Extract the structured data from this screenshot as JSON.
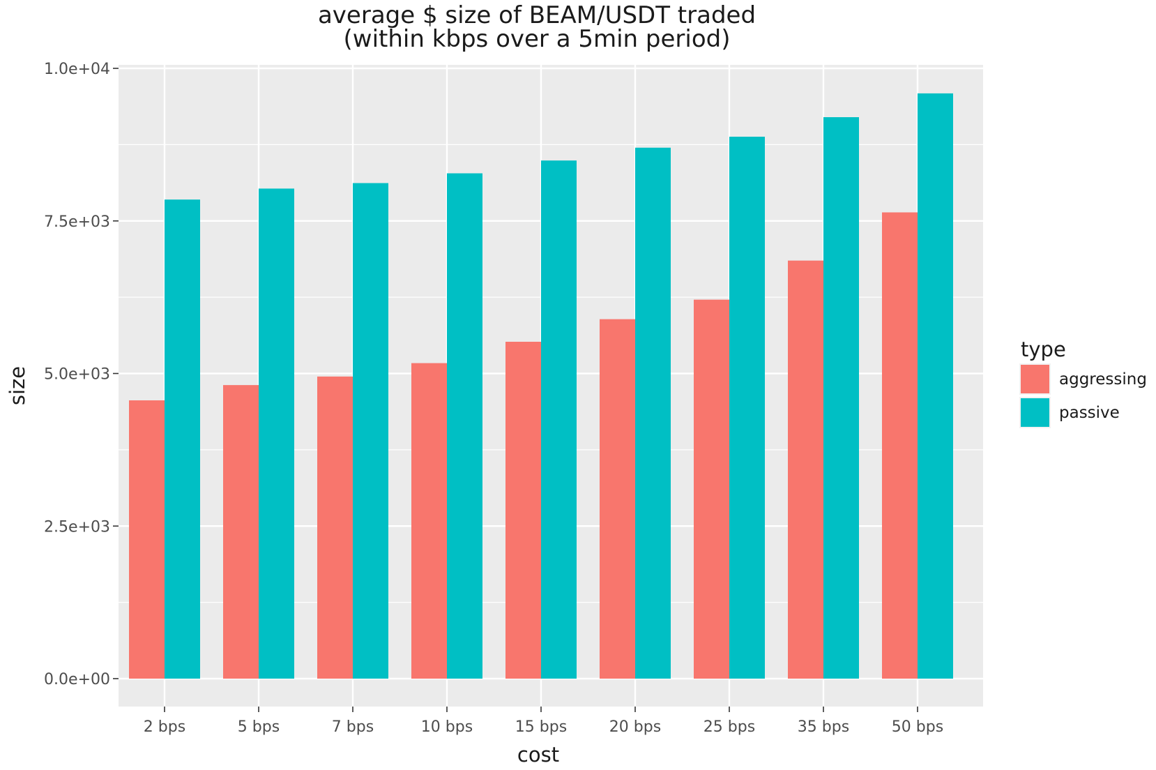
{
  "chart_data": {
    "type": "bar",
    "title_line1": "average $ size of BEAM/USDT traded",
    "title_line2": "(within kbps over a 5min period)",
    "xlabel": "cost",
    "ylabel": "size",
    "categories": [
      "2 bps",
      "5 bps",
      "7 bps",
      "10 bps",
      "15 bps",
      "20 bps",
      "25 bps",
      "35 bps",
      "50 bps"
    ],
    "series": [
      {
        "name": "aggressing",
        "color": "#F8766D",
        "values": [
          4560,
          4810,
          4950,
          5170,
          5520,
          5890,
          6210,
          6850,
          7640
        ]
      },
      {
        "name": "passive",
        "color": "#00BFC4",
        "values": [
          7850,
          8030,
          8120,
          8280,
          8490,
          8700,
          8880,
          9200,
          9590
        ]
      }
    ],
    "ylim": [
      0,
      10000
    ],
    "yticks": [
      {
        "value": 0,
        "label": "0.0e+00"
      },
      {
        "value": 2500,
        "label": "2.5e+03"
      },
      {
        "value": 5000,
        "label": "5.0e+03"
      },
      {
        "value": 7500,
        "label": "7.5e+03"
      },
      {
        "value": 10000,
        "label": "1.0e+04"
      }
    ],
    "legend_title": "type",
    "legend_position": "right",
    "grid": true,
    "panel_background": "#EBEBEB"
  }
}
